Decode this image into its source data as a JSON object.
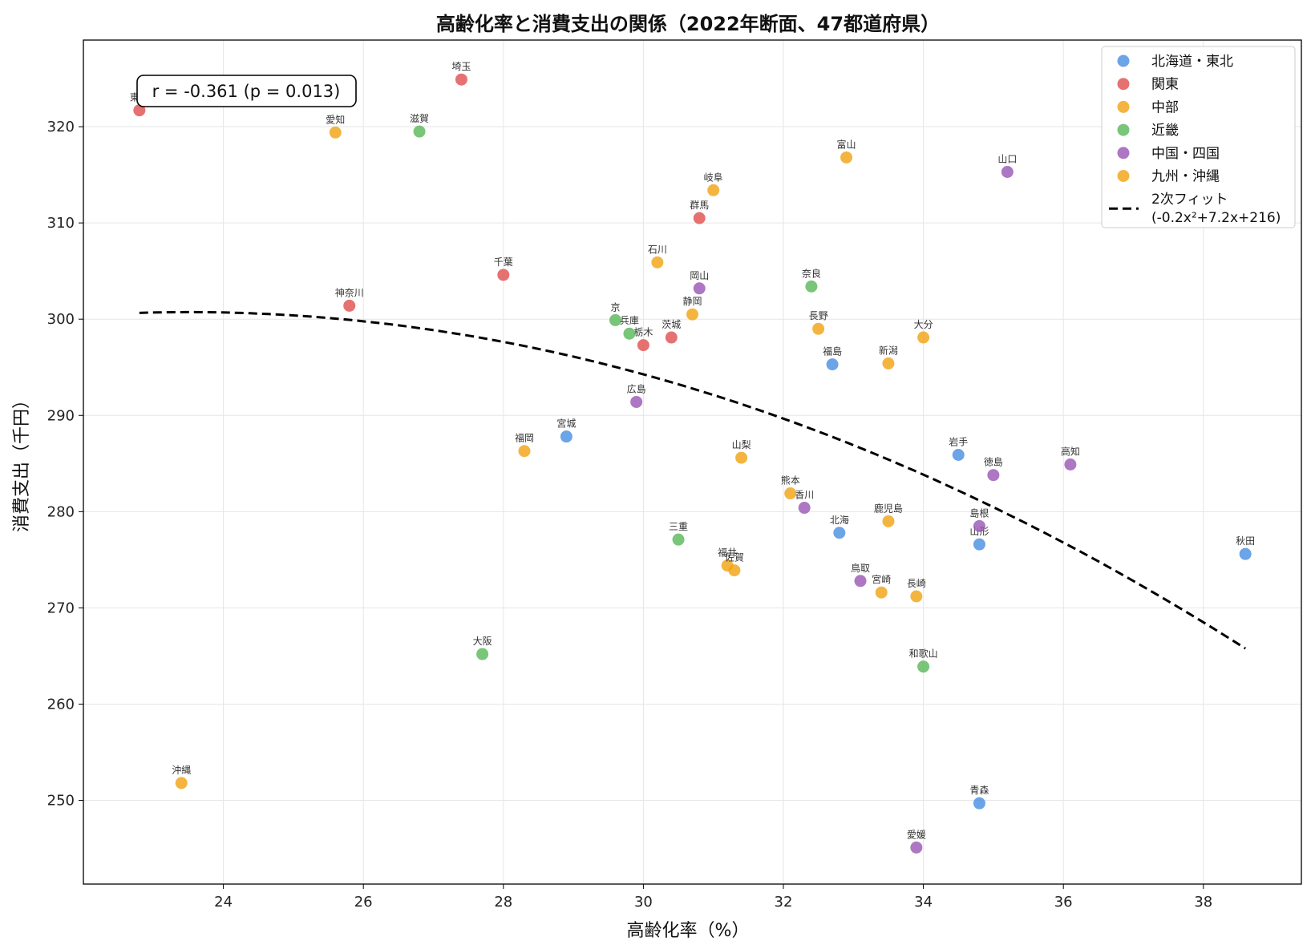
{
  "chart_data": {
    "type": "scatter",
    "title": "高齢化率と消費支出の関係（2022年断面、47都道府県）",
    "xlabel": "高齢化率（%）",
    "ylabel": "消費支出（千円）",
    "xlim": [
      22.0,
      39.4
    ],
    "ylim": [
      241.3,
      329.0
    ],
    "xticks": [
      24,
      26,
      28,
      30,
      32,
      34,
      36,
      38
    ],
    "yticks": [
      250,
      260,
      270,
      280,
      290,
      300,
      310,
      320
    ],
    "grid": true,
    "legend_position": "top-right",
    "annotation": "r = -0.361 (p = 0.013)",
    "series": [
      {
        "name": "北海道・東北",
        "color": "#4a90e2",
        "points": [
          {
            "label": "北海",
            "x": 32.8,
            "y": 277.8
          },
          {
            "label": "青森",
            "x": 34.8,
            "y": 249.7
          },
          {
            "label": "岩手",
            "x": 34.5,
            "y": 285.9
          },
          {
            "label": "宮城",
            "x": 28.9,
            "y": 287.8
          },
          {
            "label": "秋田",
            "x": 38.6,
            "y": 275.6
          },
          {
            "label": "山形",
            "x": 34.8,
            "y": 276.6
          },
          {
            "label": "福島",
            "x": 32.7,
            "y": 295.3
          }
        ]
      },
      {
        "name": "関東",
        "color": "#e05252",
        "points": [
          {
            "label": "茨城",
            "x": 30.4,
            "y": 298.1
          },
          {
            "label": "栃木",
            "x": 30.0,
            "y": 297.3
          },
          {
            "label": "群馬",
            "x": 30.8,
            "y": 310.5
          },
          {
            "label": "埼玉",
            "x": 27.4,
            "y": 324.9
          },
          {
            "label": "千葉",
            "x": 28.0,
            "y": 304.6
          },
          {
            "label": "東京",
            "x": 22.8,
            "y": 321.7
          },
          {
            "label": "神奈川",
            "x": 25.8,
            "y": 301.4
          }
        ]
      },
      {
        "name": "中部",
        "color": "#f2a516",
        "points": [
          {
            "label": "新潟",
            "x": 33.5,
            "y": 295.4
          },
          {
            "label": "富山",
            "x": 32.9,
            "y": 316.8
          },
          {
            "label": "石川",
            "x": 30.2,
            "y": 305.9
          },
          {
            "label": "福井",
            "x": 31.2,
            "y": 274.4
          },
          {
            "label": "山梨",
            "x": 31.4,
            "y": 285.6
          },
          {
            "label": "長野",
            "x": 32.5,
            "y": 299.0
          },
          {
            "label": "岐阜",
            "x": 31.0,
            "y": 313.4
          },
          {
            "label": "静岡",
            "x": 30.7,
            "y": 300.5
          },
          {
            "label": "愛知",
            "x": 25.6,
            "y": 319.4
          }
        ]
      },
      {
        "name": "近畿",
        "color": "#5cb85c",
        "points": [
          {
            "label": "三重",
            "x": 30.5,
            "y": 277.1
          },
          {
            "label": "滋賀",
            "x": 26.8,
            "y": 319.5
          },
          {
            "label": "京",
            "x": 29.6,
            "y": 299.9
          },
          {
            "label": "大阪",
            "x": 27.7,
            "y": 265.2
          },
          {
            "label": "兵庫",
            "x": 29.8,
            "y": 298.5
          },
          {
            "label": "奈良",
            "x": 32.4,
            "y": 303.4
          },
          {
            "label": "和歌山",
            "x": 34.0,
            "y": 263.9
          }
        ]
      },
      {
        "name": "中国・四国",
        "color": "#9b59b6",
        "points": [
          {
            "label": "鳥取",
            "x": 33.1,
            "y": 272.8
          },
          {
            "label": "島根",
            "x": 34.8,
            "y": 278.5
          },
          {
            "label": "岡山",
            "x": 30.8,
            "y": 303.2
          },
          {
            "label": "広島",
            "x": 29.9,
            "y": 291.4
          },
          {
            "label": "山口",
            "x": 35.2,
            "y": 315.3
          },
          {
            "label": "徳島",
            "x": 35.0,
            "y": 283.8
          },
          {
            "label": "香川",
            "x": 32.3,
            "y": 280.4
          },
          {
            "label": "愛媛",
            "x": 33.9,
            "y": 245.1
          },
          {
            "label": "高知",
            "x": 36.1,
            "y": 284.9
          }
        ]
      },
      {
        "name": "九州・沖縄",
        "color": "#f2a516",
        "points": [
          {
            "label": "福岡",
            "x": 28.3,
            "y": 286.3
          },
          {
            "label": "佐賀",
            "x": 31.3,
            "y": 273.9
          },
          {
            "label": "長崎",
            "x": 33.9,
            "y": 271.2
          },
          {
            "label": "熊本",
            "x": 32.1,
            "y": 281.9
          },
          {
            "label": "大分",
            "x": 34.0,
            "y": 298.1
          },
          {
            "label": "宮崎",
            "x": 33.4,
            "y": 271.6
          },
          {
            "label": "鹿児島",
            "x": 33.5,
            "y": 279.0
          },
          {
            "label": "沖縄",
            "x": 23.4,
            "y": 251.8
          }
        ]
      }
    ],
    "fit": {
      "name": "2次フィット",
      "equation": "(-0.2x²+7.2x+216)",
      "color": "#000000",
      "dash": "dashed",
      "points": [
        [
          22.8,
          300.6
        ],
        [
          24.0,
          300.7
        ],
        [
          26.0,
          299.8
        ],
        [
          28.0,
          297.7
        ],
        [
          30.0,
          294.3
        ],
        [
          32.0,
          289.7
        ],
        [
          34.0,
          283.8
        ],
        [
          36.0,
          276.6
        ],
        [
          38.6,
          265.9
        ]
      ]
    }
  }
}
